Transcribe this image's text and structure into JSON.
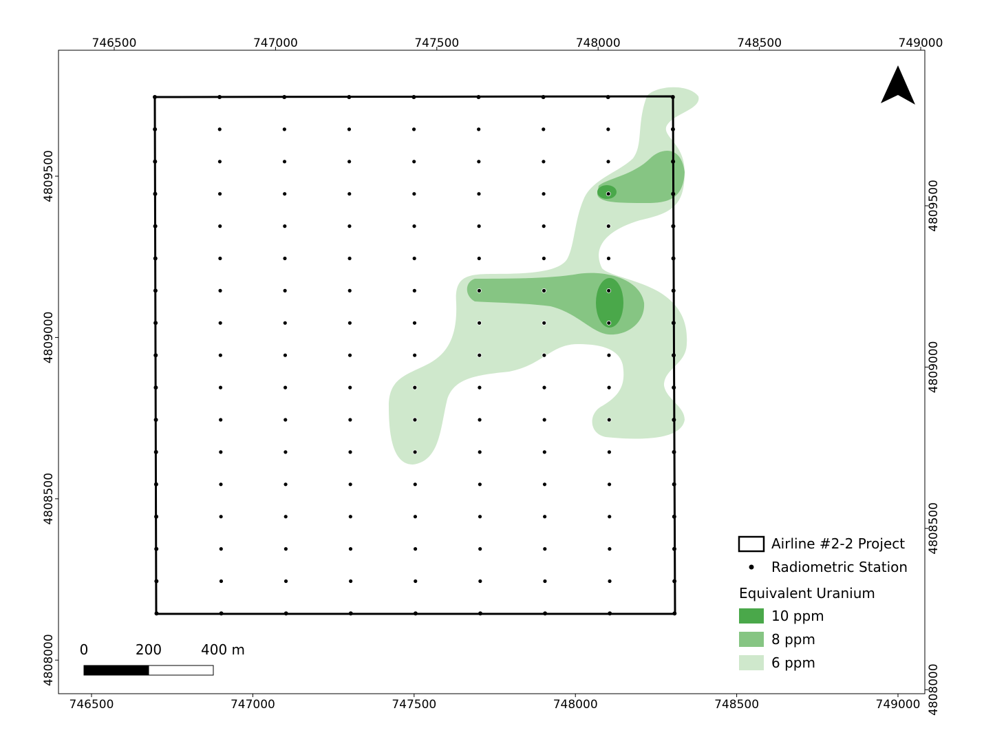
{
  "map": {
    "top_ticks": [
      746500,
      747000,
      747500,
      748000,
      748500,
      749000
    ],
    "bottom_ticks": [
      746500,
      747000,
      747500,
      748000,
      748500,
      749000
    ],
    "left_ticks": [
      4809500,
      4809000,
      4808500,
      4808000
    ],
    "right_ticks": [
      4809500,
      4809000,
      4808500,
      4808000
    ],
    "legend": {
      "items": [
        "Airline #2-2 Project",
        "Radiometric Station"
      ],
      "title": "Equivalent Uranium",
      "classes": [
        "10 ppm",
        "8 ppm",
        "6 ppm"
      ]
    },
    "scale_bar": {
      "labels": [
        "0",
        "200",
        "400 m"
      ]
    }
  }
}
